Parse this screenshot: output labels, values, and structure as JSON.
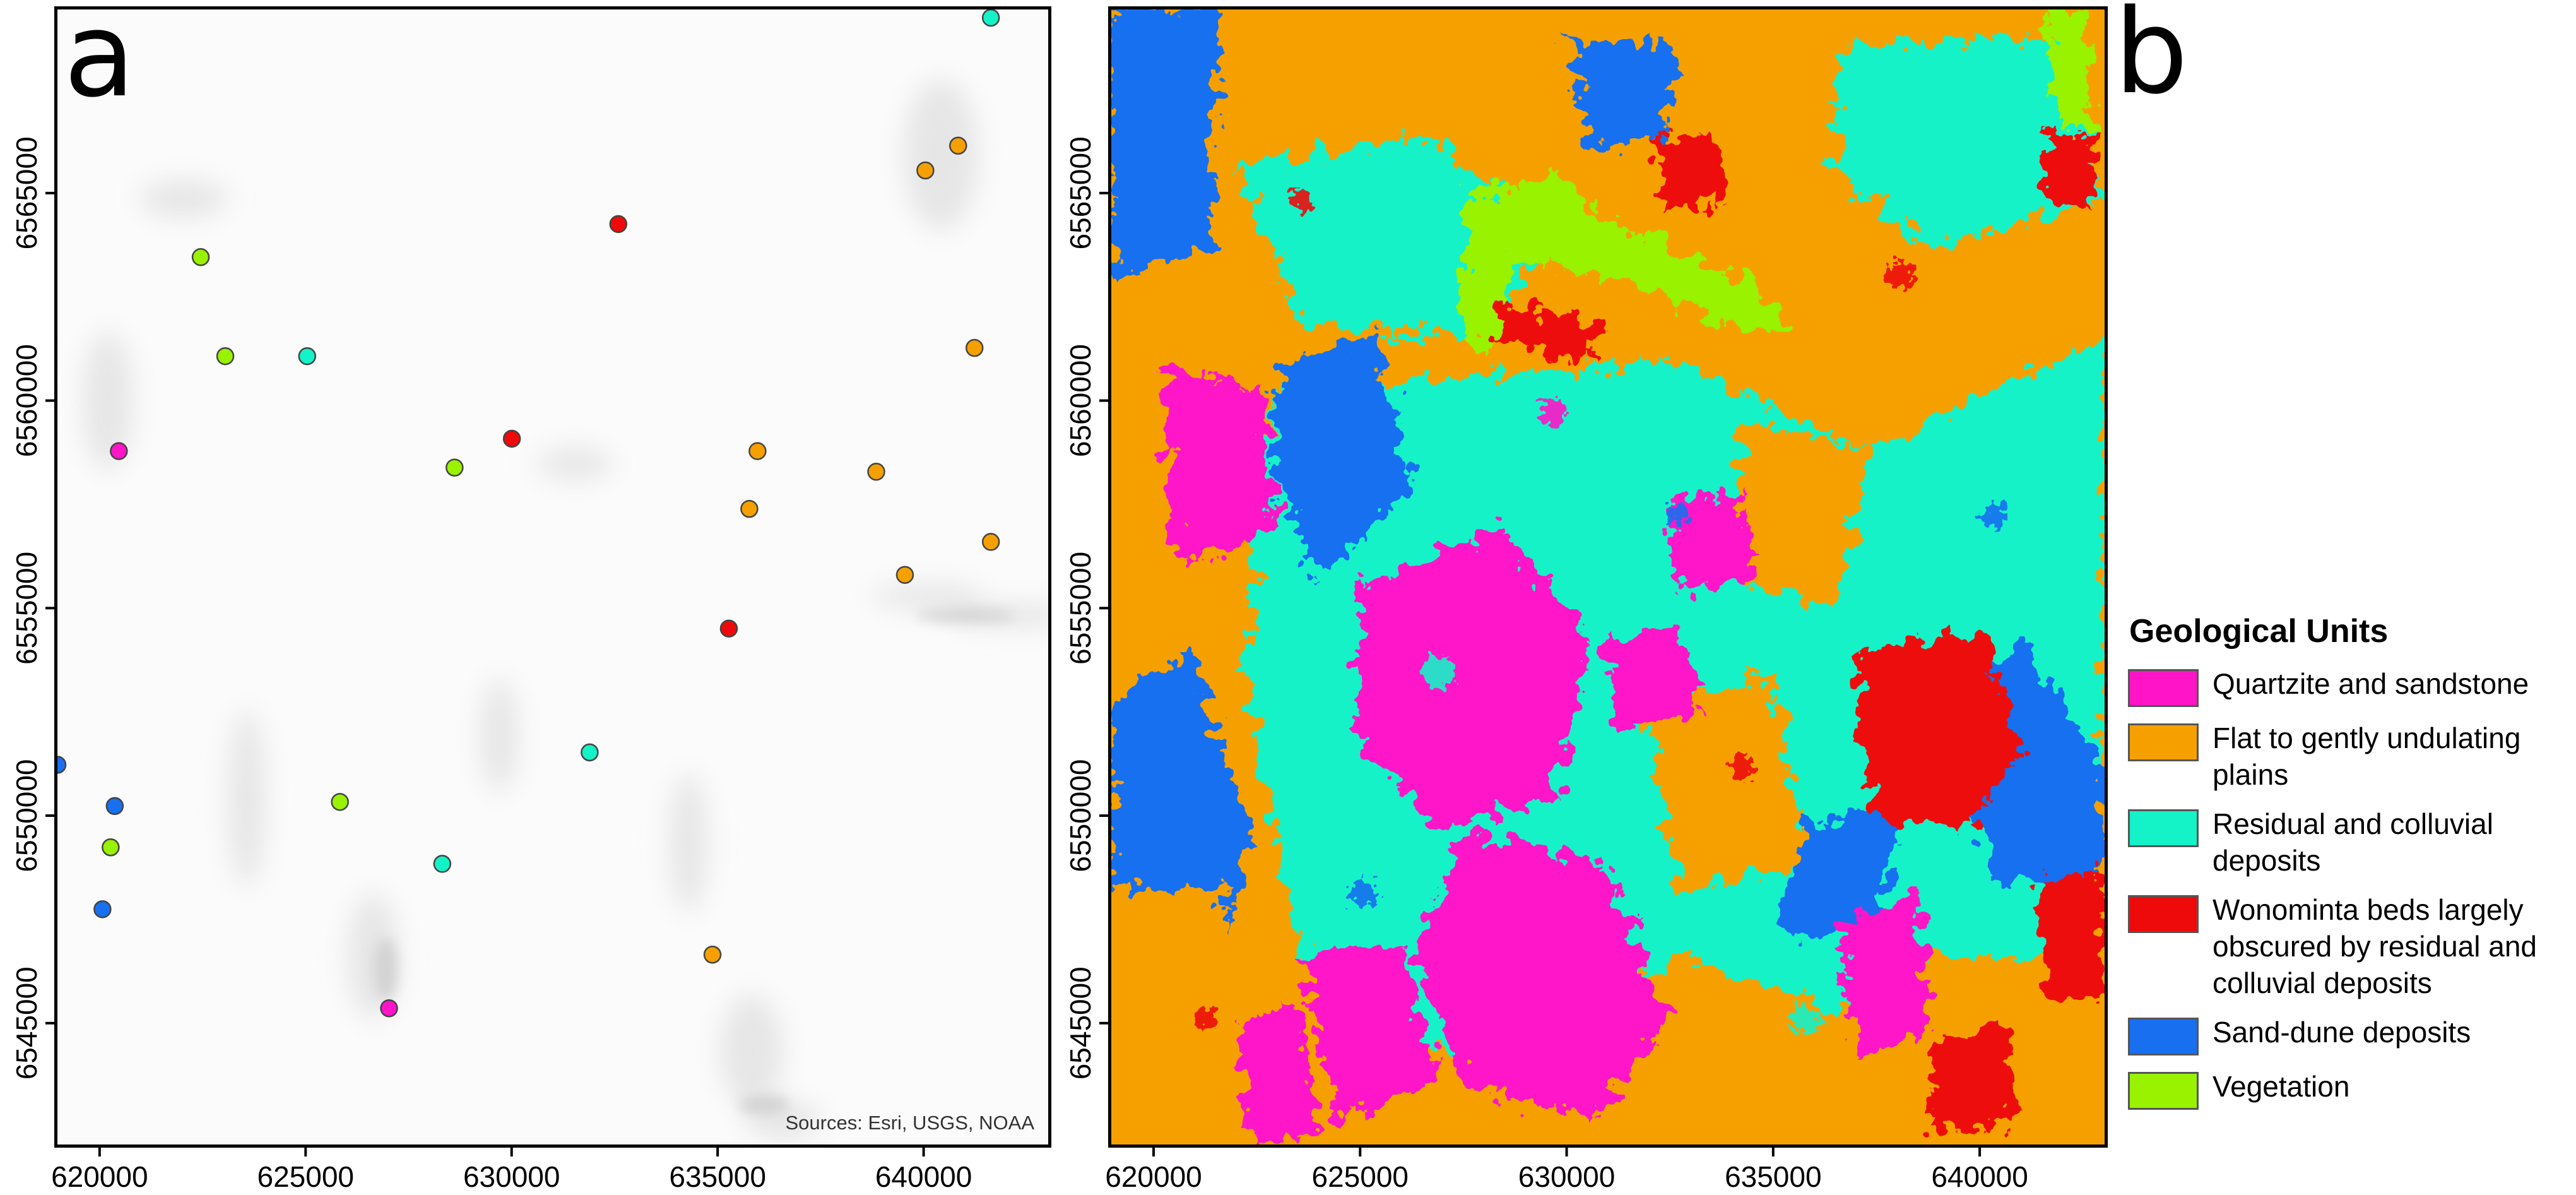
{
  "panel_a": {
    "label": "a",
    "attribution": "Sources: Esri, USGS, NOAA"
  },
  "panel_b": {
    "label": "b"
  },
  "axes": {
    "x_ticks": [
      "620000",
      "625000",
      "630000",
      "635000",
      "640000"
    ],
    "x_tick_values": [
      620000,
      625000,
      630000,
      635000,
      640000
    ],
    "y_ticks": [
      "6565000",
      "6560000",
      "6555000",
      "6550000",
      "6545000"
    ],
    "y_tick_values": [
      6565000,
      6560000,
      6555000,
      6550000,
      6545000
    ],
    "x_range": [
      618900,
      643100
    ],
    "y_range": [
      6542000,
      6569500
    ]
  },
  "legend": {
    "title": "Geological Units",
    "items": [
      {
        "label": "Quartzite and sandstone",
        "color": "#ff14c8"
      },
      {
        "label": "Flat to gently undulating plains",
        "color": "#f6a000"
      },
      {
        "label": "Residual and colluvial deposits",
        "color": "#14f2c8"
      },
      {
        "label": "Wonominta beds largely obscured by residual and colluvial deposits",
        "color": "#ee0a0a"
      },
      {
        "label": "Sand-dune deposits",
        "color": "#1870f0"
      },
      {
        "label": "Vegetation",
        "color": "#98f200"
      }
    ]
  },
  "sample_points": [
    {
      "x": 641700,
      "y": 6569300,
      "unit": "Residual and colluvial deposits"
    },
    {
      "x": 640900,
      "y": 6566200,
      "unit": "Flat to gently undulating plains"
    },
    {
      "x": 640100,
      "y": 6565600,
      "unit": "Flat to gently undulating plains"
    },
    {
      "x": 632600,
      "y": 6564300,
      "unit": "Wonominta beds largely obscured by residual and colluvial deposits"
    },
    {
      "x": 622400,
      "y": 6563500,
      "unit": "Vegetation"
    },
    {
      "x": 641300,
      "y": 6561300,
      "unit": "Flat to gently undulating plains"
    },
    {
      "x": 623000,
      "y": 6561100,
      "unit": "Vegetation"
    },
    {
      "x": 625000,
      "y": 6561100,
      "unit": "Residual and colluvial deposits"
    },
    {
      "x": 620400,
      "y": 6558800,
      "unit": "Quartzite and sandstone"
    },
    {
      "x": 630000,
      "y": 6559100,
      "unit": "Wonominta beds largely obscured by residual and colluvial deposits"
    },
    {
      "x": 628600,
      "y": 6558400,
      "unit": "Vegetation"
    },
    {
      "x": 636000,
      "y": 6558800,
      "unit": "Flat to gently undulating plains"
    },
    {
      "x": 638900,
      "y": 6558300,
      "unit": "Flat to gently undulating plains"
    },
    {
      "x": 635800,
      "y": 6557400,
      "unit": "Flat to gently undulating plains"
    },
    {
      "x": 641700,
      "y": 6556600,
      "unit": "Flat to gently undulating plains"
    },
    {
      "x": 639600,
      "y": 6555800,
      "unit": "Flat to gently undulating plains"
    },
    {
      "x": 635300,
      "y": 6554500,
      "unit": "Wonominta beds largely obscured by residual and colluvial deposits"
    },
    {
      "x": 631900,
      "y": 6551500,
      "unit": "Residual and colluvial deposits"
    },
    {
      "x": 618900,
      "y": 6551200,
      "unit": "Sand-dune deposits"
    },
    {
      "x": 620300,
      "y": 6550200,
      "unit": "Sand-dune deposits"
    },
    {
      "x": 625800,
      "y": 6550300,
      "unit": "Vegetation"
    },
    {
      "x": 620200,
      "y": 6549200,
      "unit": "Vegetation"
    },
    {
      "x": 628300,
      "y": 6548800,
      "unit": "Residual and colluvial deposits"
    },
    {
      "x": 620000,
      "y": 6547700,
      "unit": "Sand-dune deposits"
    },
    {
      "x": 634900,
      "y": 6546600,
      "unit": "Flat to gently undulating plains"
    },
    {
      "x": 627000,
      "y": 6545300,
      "unit": "Quartzite and sandstone"
    }
  ]
}
